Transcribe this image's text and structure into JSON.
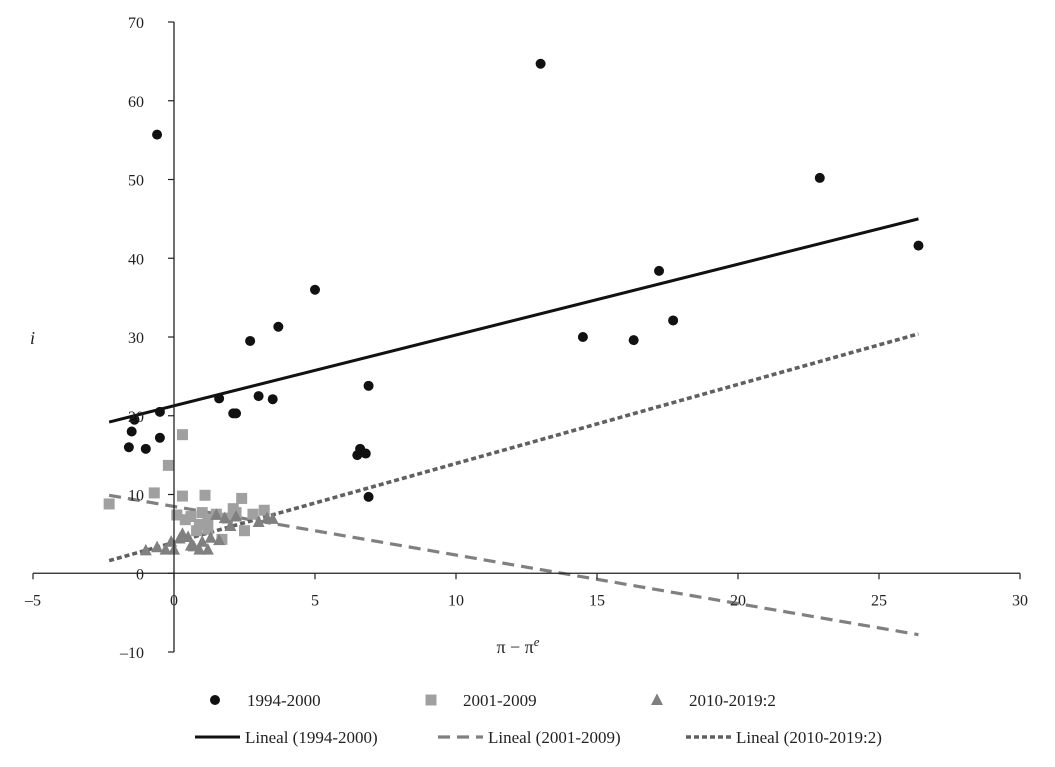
{
  "chart_data": {
    "type": "scatter",
    "title": "",
    "xlabel": "π − πᵉ",
    "ylabel": "i",
    "xlim": [
      -5,
      30
    ],
    "ylim": [
      -10,
      70
    ],
    "xticks": [
      -5,
      0,
      5,
      10,
      15,
      20,
      25,
      30
    ],
    "yticks": [
      -10,
      0,
      10,
      20,
      30,
      40,
      50,
      60,
      70
    ],
    "xtick_labels": [
      "–5",
      "0",
      "5",
      "10",
      "15",
      "20",
      "25",
      "30"
    ],
    "ytick_labels": [
      "–10",
      "0",
      "10",
      "20",
      "30",
      "40",
      "50",
      "60",
      "70"
    ],
    "grid": false,
    "legend_position": "bottom",
    "series": [
      {
        "name": "1994-2000",
        "marker": "circle",
        "color": "#111111",
        "points": [
          [
            -0.6,
            55.7
          ],
          [
            -1.6,
            16.0
          ],
          [
            -1.5,
            18.0
          ],
          [
            -1.4,
            19.5
          ],
          [
            -1.0,
            15.8
          ],
          [
            -0.5,
            20.5
          ],
          [
            -0.5,
            17.2
          ],
          [
            1.6,
            22.2
          ],
          [
            2.1,
            20.3
          ],
          [
            2.2,
            20.3
          ],
          [
            2.7,
            29.5
          ],
          [
            3.0,
            22.5
          ],
          [
            3.5,
            22.1
          ],
          [
            3.7,
            31.3
          ],
          [
            5.0,
            36.0
          ],
          [
            6.5,
            15.0
          ],
          [
            6.6,
            15.8
          ],
          [
            6.8,
            15.2
          ],
          [
            6.9,
            23.8
          ],
          [
            6.9,
            9.7
          ],
          [
            13.0,
            64.7
          ],
          [
            14.5,
            30.0
          ],
          [
            16.3,
            29.6
          ],
          [
            17.2,
            38.4
          ],
          [
            17.7,
            32.1
          ],
          [
            22.9,
            50.2
          ],
          [
            26.4,
            41.6
          ]
        ]
      },
      {
        "name": "2001-2009",
        "marker": "square",
        "color": "#a0a0a0",
        "points": [
          [
            -2.3,
            8.8
          ],
          [
            -0.7,
            10.2
          ],
          [
            -0.2,
            13.7
          ],
          [
            0.3,
            17.6
          ],
          [
            0.3,
            9.8
          ],
          [
            0.1,
            7.4
          ],
          [
            0.4,
            6.8
          ],
          [
            0.6,
            7.2
          ],
          [
            0.8,
            5.4
          ],
          [
            0.9,
            6.2
          ],
          [
            1.0,
            7.7
          ],
          [
            1.1,
            9.9
          ],
          [
            1.2,
            6.8
          ],
          [
            1.2,
            5.6
          ],
          [
            1.5,
            7.5
          ],
          [
            1.7,
            4.3
          ],
          [
            1.9,
            7.0
          ],
          [
            2.1,
            8.2
          ],
          [
            2.2,
            7.7
          ],
          [
            2.4,
            9.5
          ],
          [
            2.5,
            5.4
          ],
          [
            2.8,
            7.5
          ],
          [
            3.2,
            8.0
          ]
        ]
      },
      {
        "name": "2010-2019:2",
        "marker": "triangle",
        "color": "#808080",
        "points": [
          [
            -1.0,
            2.9
          ],
          [
            -0.6,
            3.3
          ],
          [
            -0.3,
            3.0
          ],
          [
            -0.1,
            4.0
          ],
          [
            0.0,
            3.0
          ],
          [
            0.2,
            4.4
          ],
          [
            0.3,
            5.0
          ],
          [
            0.5,
            4.6
          ],
          [
            0.6,
            3.5
          ],
          [
            0.7,
            3.4
          ],
          [
            0.9,
            3.0
          ],
          [
            1.0,
            4.0
          ],
          [
            1.2,
            3.0
          ],
          [
            1.3,
            4.5
          ],
          [
            1.5,
            7.4
          ],
          [
            1.6,
            4.2
          ],
          [
            1.8,
            7.0
          ],
          [
            2.0,
            6.0
          ],
          [
            2.2,
            7.2
          ],
          [
            3.0,
            6.5
          ],
          [
            3.3,
            7.0
          ],
          [
            3.5,
            6.9
          ]
        ]
      }
    ],
    "trendlines": [
      {
        "name": "Lineal (1994-2000)",
        "style": "solid",
        "color": "#111111",
        "from": [
          -2.3,
          19.2
        ],
        "to": [
          26.4,
          45.0
        ]
      },
      {
        "name": "Lineal (2001-2009)",
        "style": "dashed",
        "color": "#808080",
        "from": [
          -2.3,
          9.9
        ],
        "to": [
          26.4,
          -7.8
        ]
      },
      {
        "name": "Lineal (2010-2019:2)",
        "style": "dotted",
        "color": "#606060",
        "from": [
          -2.3,
          1.6
        ],
        "to": [
          26.4,
          30.4
        ]
      }
    ]
  }
}
